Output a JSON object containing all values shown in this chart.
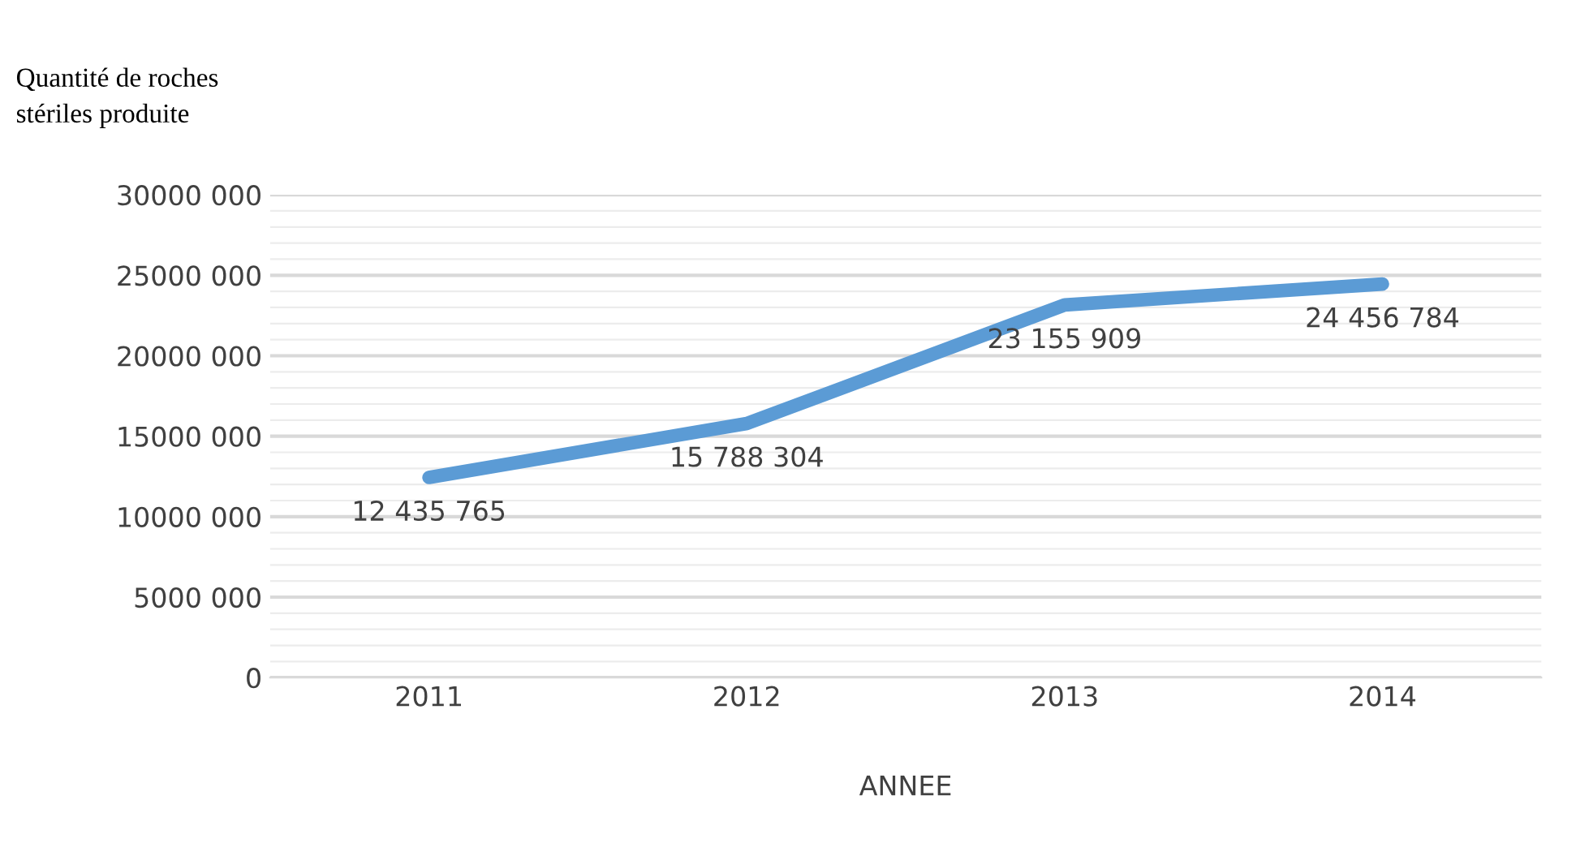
{
  "chart_data": {
    "type": "line",
    "title": "Quantité de roches\nstériles produite",
    "xlabel": "ANNEE",
    "categories": [
      "2011",
      "2012",
      "2013",
      "2014"
    ],
    "series": [
      {
        "color": "#5b9bd5",
        "values": [
          12435765,
          15788304,
          23155909,
          24456784
        ],
        "value_labels": [
          "12 435 765",
          "15 788 304",
          "23 155 909",
          "24 456 784"
        ]
      }
    ],
    "ylim": [
      0,
      30000000
    ],
    "yticks": [
      {
        "value": 0,
        "label": "0"
      },
      {
        "value": 1000000,
        "label": null
      },
      {
        "value": 2000000,
        "label": null
      },
      {
        "value": 3000000,
        "label": null
      },
      {
        "value": 4000000,
        "label": null
      },
      {
        "value": 5000000,
        "label": "5000 000"
      },
      {
        "value": 6000000,
        "label": null
      },
      {
        "value": 7000000,
        "label": null
      },
      {
        "value": 8000000,
        "label": null
      },
      {
        "value": 9000000,
        "label": null
      },
      {
        "value": 10000000,
        "label": "10000 000"
      },
      {
        "value": 11000000,
        "label": null
      },
      {
        "value": 12000000,
        "label": null
      },
      {
        "value": 13000000,
        "label": null
      },
      {
        "value": 14000000,
        "label": null
      },
      {
        "value": 15000000,
        "label": "15000 000"
      },
      {
        "value": 16000000,
        "label": null
      },
      {
        "value": 17000000,
        "label": null
      },
      {
        "value": 18000000,
        "label": null
      },
      {
        "value": 19000000,
        "label": null
      },
      {
        "value": 20000000,
        "label": "20000 000"
      },
      {
        "value": 21000000,
        "label": null
      },
      {
        "value": 22000000,
        "label": null
      },
      {
        "value": 23000000,
        "label": null
      },
      {
        "value": 24000000,
        "label": null
      },
      {
        "value": 25000000,
        "label": "25000 000"
      },
      {
        "value": 26000000,
        "label": null
      },
      {
        "value": 27000000,
        "label": null
      },
      {
        "value": 28000000,
        "label": null
      },
      {
        "value": 29000000,
        "label": null
      },
      {
        "value": 30000000,
        "label": "30000 000"
      }
    ],
    "grid": "y",
    "marker": "none",
    "line_style": "solid"
  }
}
